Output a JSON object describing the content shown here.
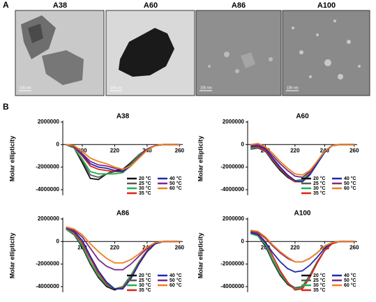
{
  "figure": {
    "panel_a_label": "A",
    "panel_b_label": "B",
    "micrographs": [
      {
        "title": "A38",
        "scale_bar": "100 nm"
      },
      {
        "title": "A60",
        "scale_bar": "100 nm"
      },
      {
        "title": "A86",
        "scale_bar": "100 nm"
      },
      {
        "title": "A100",
        "scale_bar": "100 nm"
      }
    ]
  },
  "chart_data": [
    {
      "type": "line",
      "title": "A38",
      "y_label": "Molar ellipticity",
      "x": [
        190,
        195,
        200,
        205,
        210,
        215,
        220,
        225,
        230,
        235,
        240,
        245,
        250,
        255,
        260
      ],
      "xlim": [
        188,
        262
      ],
      "xticks": [
        200,
        220,
        240,
        260
      ],
      "ylim": [
        -4500000,
        2000000
      ],
      "yticks": [
        2000000,
        0,
        -2000000,
        -4000000
      ],
      "legend": "lower right",
      "series": [
        {
          "name": "20 °C",
          "color": "#111111",
          "values": [
            0,
            -300000.0,
            -1600000.0,
            -3000000.0,
            -3100000.0,
            -2600000.0,
            -2300000.0,
            -2200000.0,
            -1600000.0,
            -900000.0,
            -400000.0,
            -100000.0,
            0,
            0,
            0
          ]
        },
        {
          "name": "25 °C",
          "color": "#5a5a5a",
          "values": [
            0,
            -300000.0,
            -1400000.0,
            -2700000.0,
            -2900000.0,
            -2600000.0,
            -2400000.0,
            -2300000.0,
            -1700000.0,
            -900000.0,
            -400000.0,
            -100000.0,
            0,
            0,
            0
          ]
        },
        {
          "name": "30 °C",
          "color": "#22b14c",
          "values": [
            0,
            -300000.0,
            -1300000.0,
            -2400000.0,
            -2600000.0,
            -2600000.0,
            -2600000.0,
            -2500000.0,
            -1800000.0,
            -1000000.0,
            -400000.0,
            -100000.0,
            0,
            0,
            0
          ]
        },
        {
          "name": "35 °C",
          "color": "#e0211d",
          "values": [
            0,
            -200000.0,
            -1000000.0,
            -1900000.0,
            -2200000.0,
            -2300000.0,
            -2400000.0,
            -2400000.0,
            -1900000.0,
            -1100000.0,
            -400000.0,
            -100000.0,
            0,
            0,
            0
          ]
        },
        {
          "name": "40 °C",
          "color": "#1f2ba8",
          "values": [
            0,
            -200000.0,
            -900000.0,
            -1700000.0,
            -2000000.0,
            -2100000.0,
            -2300000.0,
            -2400000.0,
            -1900000.0,
            -1100000.0,
            -400000.0,
            -100000.0,
            0,
            0,
            0
          ]
        },
        {
          "name": "50 °C",
          "color": "#7b2a8c",
          "values": [
            0,
            -200000.0,
            -800000.0,
            -1500000.0,
            -1800000.0,
            -1900000.0,
            -2100000.0,
            -2200000.0,
            -1900000.0,
            -1100000.0,
            -400000.0,
            -100000.0,
            0,
            0,
            0
          ]
        },
        {
          "name": "60 °C",
          "color": "#f07f1d",
          "values": [
            0,
            -100000.0,
            -600000.0,
            -1200000.0,
            -1500000.0,
            -1700000.0,
            -2000000.0,
            -2200000.0,
            -1900000.0,
            -1200000.0,
            -500000.0,
            -100000.0,
            0,
            0,
            0
          ]
        }
      ]
    },
    {
      "type": "line",
      "title": "A60",
      "y_label": "Molar ellipticity",
      "x": [
        190,
        195,
        200,
        205,
        210,
        215,
        220,
        225,
        230,
        235,
        240,
        245,
        250,
        255,
        260
      ],
      "xlim": [
        188,
        262
      ],
      "xticks": [
        200,
        220,
        240,
        260
      ],
      "ylim": [
        -4500000,
        2000000
      ],
      "yticks": [
        2000000,
        0,
        -2000000,
        -4000000
      ],
      "legend": "lower right",
      "series": [
        {
          "name": "20 °C",
          "color": "#111111",
          "values": [
            -400000.0,
            -300000.0,
            -600000.0,
            -1500000.0,
            -2300000.0,
            -2900000.0,
            -3300000.0,
            -3200000.0,
            -2500000.0,
            -1500000.0,
            -600000.0,
            -100000.0,
            0,
            0,
            0
          ]
        },
        {
          "name": "25 °C",
          "color": "#5a5a5a",
          "values": [
            -400000.0,
            -300000.0,
            -600000.0,
            -1400000.0,
            -2200000.0,
            -2800000.0,
            -3200000.0,
            -3200000.0,
            -2500000.0,
            -1500000.0,
            -600000.0,
            -100000.0,
            0,
            0,
            0
          ]
        },
        {
          "name": "30 °C",
          "color": "#22b14c",
          "values": [
            -300000.0,
            -200000.0,
            -500000.0,
            -1300000.0,
            -2100000.0,
            -2800000.0,
            -3200000.0,
            -3100000.0,
            -2500000.0,
            -1500000.0,
            -600000.0,
            -100000.0,
            0,
            0,
            0
          ]
        },
        {
          "name": "35 °C",
          "color": "#e0211d",
          "values": [
            -200000.0,
            -200000.0,
            -500000.0,
            -1300000.0,
            -2100000.0,
            -2800000.0,
            -3300000.0,
            -3300000.0,
            -2600000.0,
            -1600000.0,
            -600000.0,
            -100000.0,
            0,
            0,
            0
          ]
        },
        {
          "name": "40 °C",
          "color": "#1f2ba8",
          "values": [
            -200000.0,
            -100000.0,
            -400000.0,
            -1200000.0,
            -2000000.0,
            -2700000.0,
            -3200000.0,
            -3300000.0,
            -2700000.0,
            -1700000.0,
            -700000.0,
            -100000.0,
            0,
            0,
            0
          ]
        },
        {
          "name": "50 °C",
          "color": "#7b2a8c",
          "values": [
            -100000.0,
            0,
            -300000.0,
            -1000000.0,
            -1700000.0,
            -2300000.0,
            -2800000.0,
            -2900000.0,
            -2400000.0,
            -1500000.0,
            -600000.0,
            -100000.0,
            0,
            0,
            0
          ]
        },
        {
          "name": "60 °C",
          "color": "#f07f1d",
          "values": [
            0,
            100000.0,
            -200000.0,
            -800000.0,
            -1500000.0,
            -2100000.0,
            -2600000.0,
            -2700000.0,
            -2300000.0,
            -1500000.0,
            -600000.0,
            -100000.0,
            0,
            0,
            0
          ]
        }
      ]
    },
    {
      "type": "line",
      "title": "A86",
      "y_label": "Molar ellipticity",
      "x": [
        190,
        195,
        200,
        205,
        210,
        215,
        220,
        225,
        230,
        235,
        240,
        245,
        250,
        255,
        260
      ],
      "xlim": [
        188,
        262
      ],
      "xticks": [
        200,
        220,
        240,
        260
      ],
      "ylim": [
        -4500000,
        2000000
      ],
      "yticks": [
        2000000,
        0,
        -2000000,
        -4000000
      ],
      "legend": "lower right",
      "series": [
        {
          "name": "20 °C",
          "color": "#111111",
          "values": [
            1100000.0,
            600000.0,
            -500000.0,
            -2000000.0,
            -3200000.0,
            -4000000.0,
            -4300000.0,
            -4000000.0,
            -3000000.0,
            -1800000.0,
            -800000.0,
            -200000.0,
            0,
            0,
            0
          ]
        },
        {
          "name": "25 °C",
          "color": "#5a5a5a",
          "values": [
            1100000.0,
            600000.0,
            -400000.0,
            -1900000.0,
            -3100000.0,
            -3900000.0,
            -4200000.0,
            -4000000.0,
            -3000000.0,
            -1800000.0,
            -800000.0,
            -200000.0,
            0,
            0,
            0
          ]
        },
        {
          "name": "30 °C",
          "color": "#22b14c",
          "values": [
            1100000.0,
            700000.0,
            -300000.0,
            -1800000.0,
            -3000000.0,
            -3800000.0,
            -4200000.0,
            -4000000.0,
            -3000000.0,
            -1800000.0,
            -800000.0,
            -200000.0,
            0,
            0,
            0
          ]
        },
        {
          "name": "35 °C",
          "color": "#e0211d",
          "values": [
            1200000.0,
            800000.0,
            -100000.0,
            -1500000.0,
            -2800000.0,
            -3700000.0,
            -4200000.0,
            -4100000.0,
            -3200000.0,
            -1900000.0,
            -800000.0,
            -200000.0,
            0,
            0,
            0
          ]
        },
        {
          "name": "40 °C",
          "color": "#1f2ba8",
          "values": [
            1200000.0,
            900000.0,
            100000.0,
            -1300000.0,
            -2600000.0,
            -3600000.0,
            -4200000.0,
            -4200000.0,
            -3300000.0,
            -2000000.0,
            -900000.0,
            -200000.0,
            0,
            0,
            0
          ]
        },
        {
          "name": "50 °C",
          "color": "#7b2a8c",
          "values": [
            1200000.0,
            1000000.0,
            400000.0,
            -600000.0,
            -1600000.0,
            -2200000.0,
            -2500000.0,
            -2500000.0,
            -2000000.0,
            -1300000.0,
            -600000.0,
            -100000.0,
            0,
            0,
            0
          ]
        },
        {
          "name": "60 °C",
          "color": "#f07f1d",
          "values": [
            1300000.0,
            1100000.0,
            600000.0,
            -200000.0,
            -900000.0,
            -1500000.0,
            -1900000.0,
            -1900000.0,
            -1600000.0,
            -1100000.0,
            -500000.0,
            -100000.0,
            0,
            0,
            0
          ]
        }
      ]
    },
    {
      "type": "line",
      "title": "A100",
      "y_label": "Molar ellipticity",
      "x": [
        190,
        195,
        200,
        205,
        210,
        215,
        220,
        225,
        230,
        235,
        240,
        245,
        250,
        255,
        260
      ],
      "xlim": [
        188,
        262
      ],
      "xticks": [
        200,
        220,
        240,
        260
      ],
      "ylim": [
        -4500000,
        2000000
      ],
      "yticks": [
        2000000,
        0,
        -2000000,
        -4000000
      ],
      "legend": "lower right",
      "series": [
        {
          "name": "20 °C",
          "color": "#111111",
          "values": [
            800000.0,
            500000.0,
            -400000.0,
            -1800000.0,
            -3000000.0,
            -3800000.0,
            -4200000.0,
            -4000000.0,
            -3000000.0,
            -1800000.0,
            -800000.0,
            -200000.0,
            0,
            0,
            0
          ]
        },
        {
          "name": "25 °C",
          "color": "#5a5a5a",
          "values": [
            700000.0,
            500000.0,
            -300000.0,
            -1700000.0,
            -2900000.0,
            -3700000.0,
            -4100000.0,
            -4000000.0,
            -3000000.0,
            -1800000.0,
            -800000.0,
            -200000.0,
            0,
            0,
            0
          ]
        },
        {
          "name": "30 °C",
          "color": "#22b14c",
          "values": [
            700000.0,
            500000.0,
            -200000.0,
            -1600000.0,
            -2800000.0,
            -3700000.0,
            -4200000.0,
            -4100000.0,
            -3100000.0,
            -1900000.0,
            -800000.0,
            -200000.0,
            0,
            0,
            0
          ]
        },
        {
          "name": "35 °C",
          "color": "#e0211d",
          "values": [
            900000.0,
            700000.0,
            0,
            -1300000.0,
            -2600000.0,
            -3600000.0,
            -4300000.0,
            -4200000.0,
            -3200000.0,
            -1900000.0,
            -800000.0,
            -200000.0,
            0,
            0,
            0
          ]
        },
        {
          "name": "40 °C",
          "color": "#1f2ba8",
          "values": [
            800000.0,
            600000.0,
            -100000.0,
            -1000000.0,
            -1800000.0,
            -2400000.0,
            -2700000.0,
            -2600000.0,
            -2100000.0,
            -1400000.0,
            -600000.0,
            -100000.0,
            0,
            0,
            0
          ]
        },
        {
          "name": "50 °C",
          "color": "#7b2a8c",
          "values": [
            900000.0,
            800000.0,
            300000.0,
            -400000.0,
            -1000000.0,
            -1500000.0,
            -1800000.0,
            -1800000.0,
            -1500000.0,
            -1000000.0,
            -400000.0,
            -100000.0,
            0,
            0,
            0
          ]
        },
        {
          "name": "60 °C",
          "color": "#f07f1d",
          "values": [
            1000000.0,
            900000.0,
            400000.0,
            -300000.0,
            -900000.0,
            -1400000.0,
            -1800000.0,
            -1800000.0,
            -1500000.0,
            -1000000.0,
            -400000.0,
            -100000.0,
            0,
            0,
            0
          ]
        }
      ]
    }
  ]
}
